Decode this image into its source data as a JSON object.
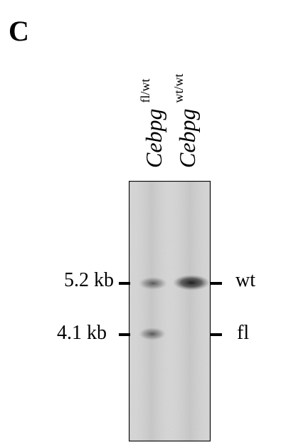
{
  "figure": {
    "panel_letter": "C",
    "lanes": [
      {
        "gene": "Cebpg",
        "genotype": "fl/wt"
      },
      {
        "gene": "Cebpg",
        "genotype": "wt/wt"
      }
    ],
    "size_markers": [
      {
        "label": "5.2 kb"
      },
      {
        "label": "4.1 kb"
      }
    ],
    "band_labels": [
      {
        "label": "wt"
      },
      {
        "label": "fl"
      }
    ]
  }
}
